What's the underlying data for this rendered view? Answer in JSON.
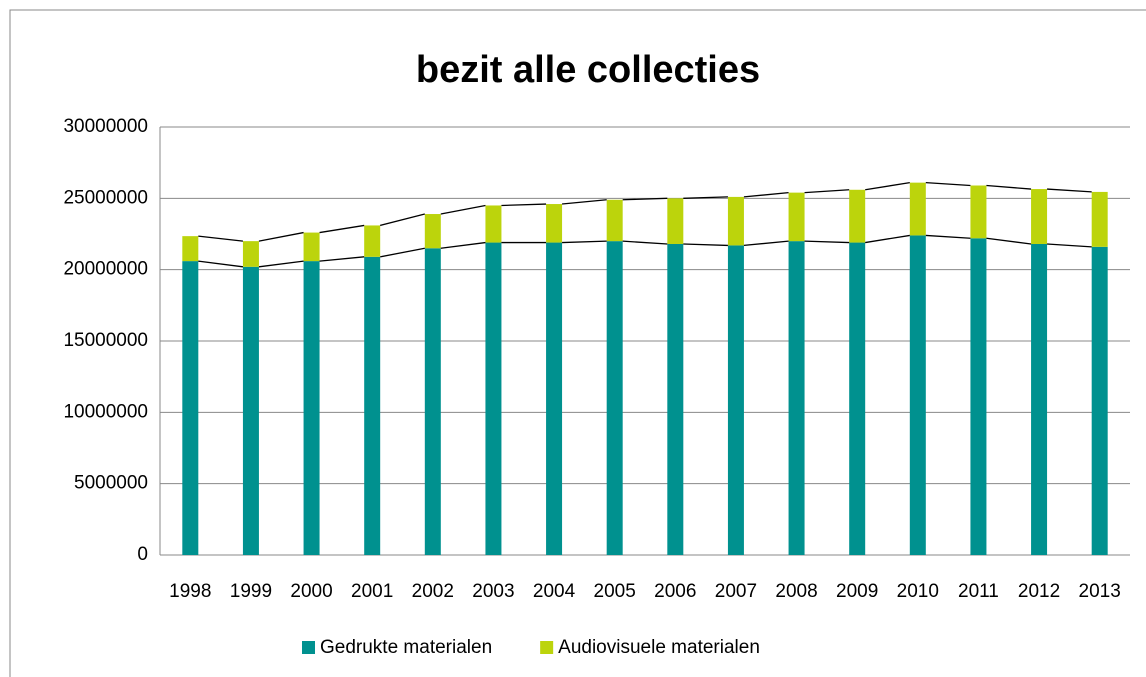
{
  "chart_data": {
    "type": "bar",
    "stacked": true,
    "series_lines": true,
    "title": "bezit alle collecties",
    "categories": [
      "1998",
      "1999",
      "2000",
      "2001",
      "2002",
      "2003",
      "2004",
      "2005",
      "2006",
      "2007",
      "2008",
      "2009",
      "2010",
      "2011",
      "2012",
      "2013"
    ],
    "series": [
      {
        "name": "Gedrukte materialen",
        "color": "#00918f",
        "values": [
          20600000,
          20200000,
          20600000,
          20900000,
          21500000,
          21900000,
          21900000,
          22000000,
          21800000,
          21700000,
          22000000,
          21900000,
          22400000,
          22200000,
          21800000,
          21600000
        ]
      },
      {
        "name": "Audiovisuele materialen",
        "color": "#bcd40c",
        "values": [
          1750000,
          1800000,
          2000000,
          2200000,
          2400000,
          2600000,
          2700000,
          2900000,
          3200000,
          3400000,
          3400000,
          3700000,
          3700000,
          3700000,
          3850000,
          3850000
        ]
      }
    ],
    "ylim": [
      0,
      30000000
    ],
    "yticks": [
      0,
      5000000,
      10000000,
      15000000,
      20000000,
      25000000,
      30000000
    ],
    "grid": true,
    "legend": "bottom"
  }
}
